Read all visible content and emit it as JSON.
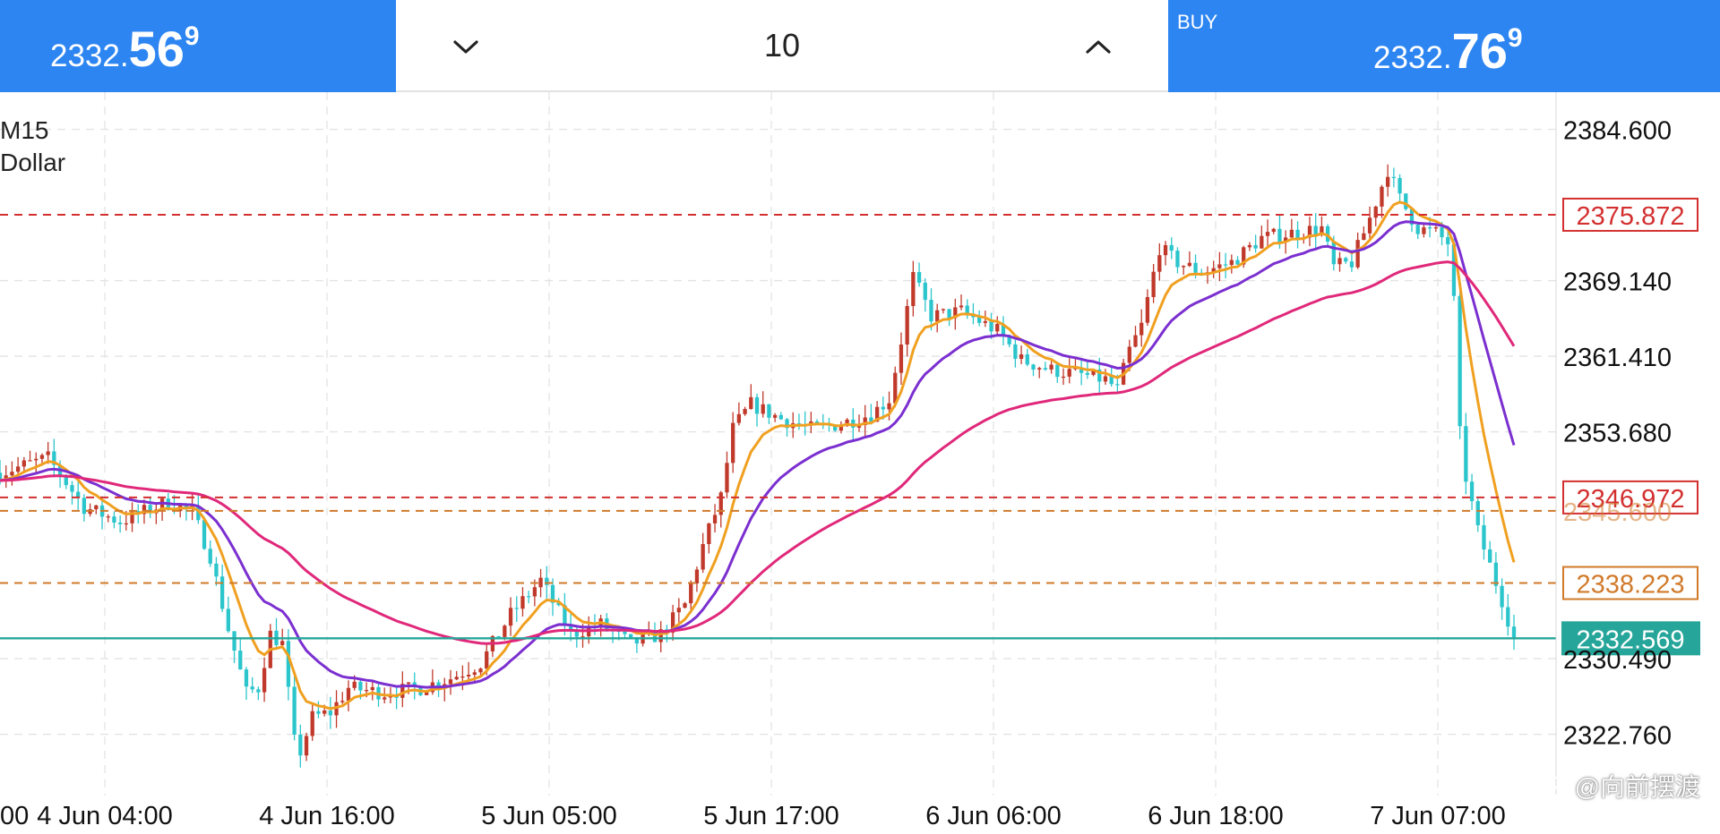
{
  "trade_bar": {
    "sell": {
      "prefix": "2332.",
      "big": "56",
      "sup": "9"
    },
    "volume": "10",
    "buy": {
      "label": "BUY",
      "prefix": "2332.",
      "big": "76",
      "sup": "9"
    }
  },
  "symbol_info": {
    "timeframe": "M15",
    "currency": "Dollar"
  },
  "watermark": "@向前摆渡",
  "colors": {
    "accent_blue": "#2d85f2",
    "candle_up": "#c0392b",
    "candle_down": "#2bc5cc",
    "ma_fast": "#f0a020",
    "ma_mid": "#7b2fd0",
    "ma_slow": "#e0287a",
    "level_red": "#d32f2f",
    "level_orange": "#d07a2a",
    "current_price": "#26a69a",
    "grid": "#e3e3e3"
  },
  "chart_data": {
    "type": "candlestick",
    "ylim": [
      2316.5,
      2388.4
    ],
    "y_ticks": [
      "2384.600",
      "2369.140",
      "2361.410",
      "2353.680",
      "2330.490",
      "2322.760"
    ],
    "x_ticks": [
      "00",
      "4 Jun 04:00",
      "4 Jun 16:00",
      "5 Jun 05:00",
      "5 Jun 17:00",
      "6 Jun 06:00",
      "6 Jun 18:00",
      "7 Jun 07:00"
    ],
    "price_levels": [
      {
        "label": "2375.872",
        "value": 2375.872,
        "kind": "red"
      },
      {
        "label": "2346.972",
        "value": 2346.972,
        "kind": "red"
      },
      {
        "label": "2345.600",
        "value": 2345.6,
        "kind": "orange-hidden"
      },
      {
        "label": "2338.223",
        "value": 2338.223,
        "kind": "orange"
      },
      {
        "label": "2332.569",
        "value": 2332.569,
        "kind": "current"
      }
    ],
    "close_path": [
      [
        0,
        2349.5
      ],
      [
        8,
        2351.0
      ],
      [
        14,
        2346.0
      ],
      [
        20,
        2344.5
      ],
      [
        28,
        2346.5
      ],
      [
        32,
        2345.5
      ],
      [
        35,
        2341.0
      ],
      [
        38,
        2333.5
      ],
      [
        41,
        2327.0
      ],
      [
        43,
        2327.5
      ],
      [
        45,
        2333.0
      ],
      [
        47,
        2332.0
      ],
      [
        49,
        2322.0
      ],
      [
        50,
        2321.0
      ],
      [
        52,
        2324.5
      ],
      [
        55,
        2325.0
      ],
      [
        58,
        2327.5
      ],
      [
        64,
        2327.0
      ],
      [
        70,
        2327.5
      ],
      [
        75,
        2328.5
      ],
      [
        80,
        2330.0
      ],
      [
        85,
        2335.0
      ],
      [
        90,
        2338.5
      ],
      [
        95,
        2333.0
      ],
      [
        100,
        2334.0
      ],
      [
        105,
        2332.0
      ],
      [
        110,
        2333.0
      ],
      [
        114,
        2336.0
      ],
      [
        117,
        2342.0
      ],
      [
        120,
        2347.0
      ],
      [
        122,
        2354.0
      ],
      [
        125,
        2356.5
      ],
      [
        130,
        2355.0
      ],
      [
        135,
        2354.0
      ],
      [
        140,
        2354.5
      ],
      [
        145,
        2355.5
      ],
      [
        148,
        2357.0
      ],
      [
        150,
        2363.0
      ],
      [
        152,
        2369.5
      ],
      [
        155,
        2365.5
      ],
      [
        160,
        2366.0
      ],
      [
        163,
        2365.0
      ],
      [
        166,
        2364.0
      ],
      [
        170,
        2361.0
      ],
      [
        175,
        2360.0
      ],
      [
        180,
        2359.5
      ],
      [
        184,
        2359.0
      ],
      [
        186,
        2358.0
      ],
      [
        188,
        2362.0
      ],
      [
        190,
        2364.5
      ],
      [
        193,
        2372.5
      ],
      [
        196,
        2371.0
      ],
      [
        200,
        2370.0
      ],
      [
        205,
        2371.0
      ],
      [
        210,
        2373.5
      ],
      [
        215,
        2374.0
      ],
      [
        220,
        2374.5
      ],
      [
        222,
        2370.5
      ],
      [
        225,
        2371.0
      ],
      [
        228,
        2375.5
      ],
      [
        231,
        2380.5
      ],
      [
        233,
        2377.5
      ],
      [
        236,
        2374.5
      ],
      [
        239,
        2374.0
      ],
      [
        241,
        2373.0
      ],
      [
        242,
        2367.0
      ],
      [
        243,
        2353.5
      ],
      [
        244,
        2349.0
      ],
      [
        246,
        2343.5
      ],
      [
        248,
        2340.0
      ],
      [
        250,
        2336.5
      ],
      [
        252,
        2332.6
      ]
    ]
  }
}
